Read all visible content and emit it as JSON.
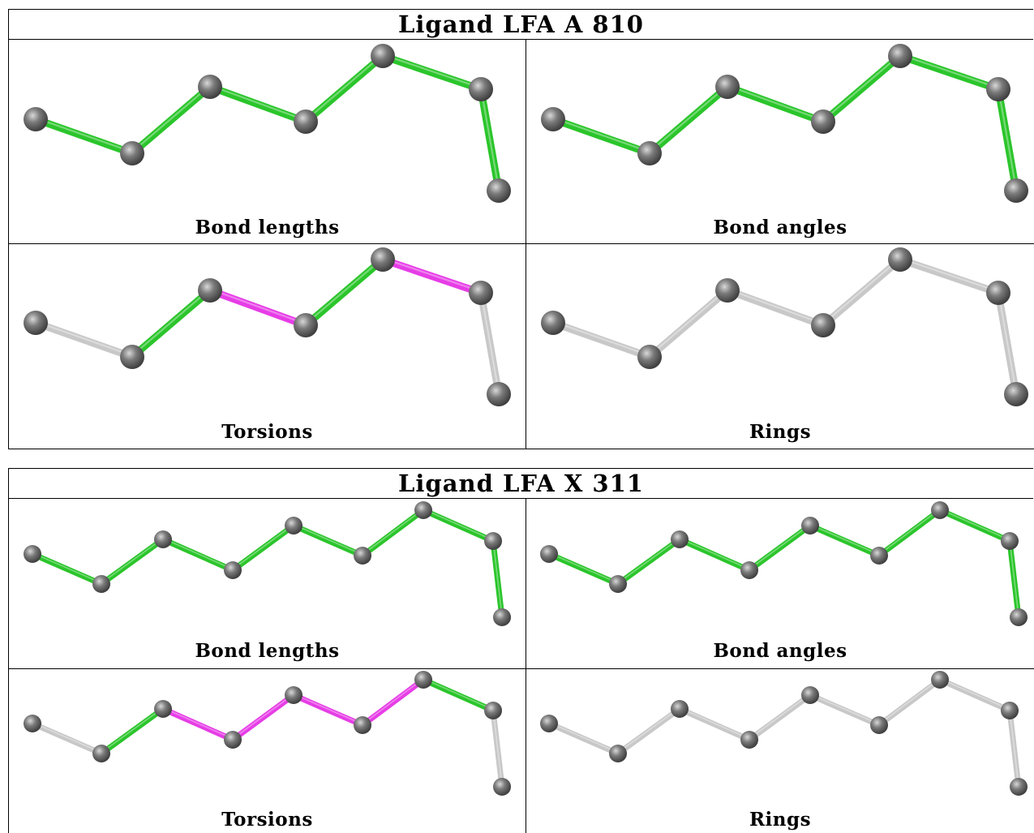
{
  "colors": {
    "good": "#2bc52b",
    "outlier": "#e63de6",
    "none": "#c8c8c8",
    "atom": "#7a7a7a"
  },
  "ligands": [
    {
      "title": "Ligand LFA A 810",
      "panels": [
        {
          "caption": "Bond lengths",
          "bonds": [
            "good",
            "good",
            "good",
            "good",
            "good",
            "good"
          ]
        },
        {
          "caption": "Bond angles",
          "bonds": [
            "good",
            "good",
            "good",
            "good",
            "good",
            "good"
          ]
        },
        {
          "caption": "Torsions",
          "bonds": [
            "none",
            "good",
            "outlier",
            "good",
            "outlier",
            "none"
          ]
        },
        {
          "caption": "Rings",
          "bonds": [
            "none",
            "none",
            "none",
            "none",
            "none",
            "none"
          ]
        }
      ]
    },
    {
      "title": "Ligand LFA X 311",
      "panels": [
        {
          "caption": "Bond lengths",
          "bonds": [
            "good",
            "good",
            "good",
            "good",
            "good",
            "good",
            "good",
            "good"
          ]
        },
        {
          "caption": "Bond angles",
          "bonds": [
            "good",
            "good",
            "good",
            "good",
            "good",
            "good",
            "good",
            "good"
          ]
        },
        {
          "caption": "Torsions",
          "bonds": [
            "none",
            "good",
            "outlier",
            "outlier",
            "outlier",
            "outlier",
            "good",
            "none"
          ]
        },
        {
          "caption": "Rings",
          "bonds": [
            "none",
            "none",
            "none",
            "none",
            "none",
            "none",
            "none",
            "none"
          ]
        }
      ]
    }
  ]
}
